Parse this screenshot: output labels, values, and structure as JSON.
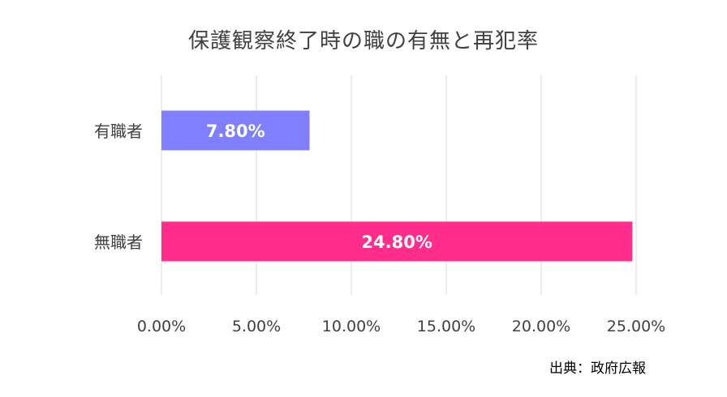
{
  "chart_data": {
    "type": "bar",
    "orientation": "horizontal",
    "title": "保護観察終了時の職の有無と再犯率",
    "categories": [
      "有職者",
      "無職者"
    ],
    "values": [
      7.8,
      24.8
    ],
    "data_labels": [
      "7.80%",
      "24.80%"
    ],
    "bar_colors": [
      "#7f7fff",
      "#ff2d8b"
    ],
    "xlim": [
      0,
      25
    ],
    "x_ticks": [
      0,
      5,
      10,
      15,
      20,
      25
    ],
    "x_tick_labels": [
      "0.00%",
      "5.00%",
      "10.00%",
      "15.00%",
      "20.00%",
      "25.00%"
    ],
    "grid": true,
    "legend": "none"
  },
  "source": "出典：政府広報"
}
